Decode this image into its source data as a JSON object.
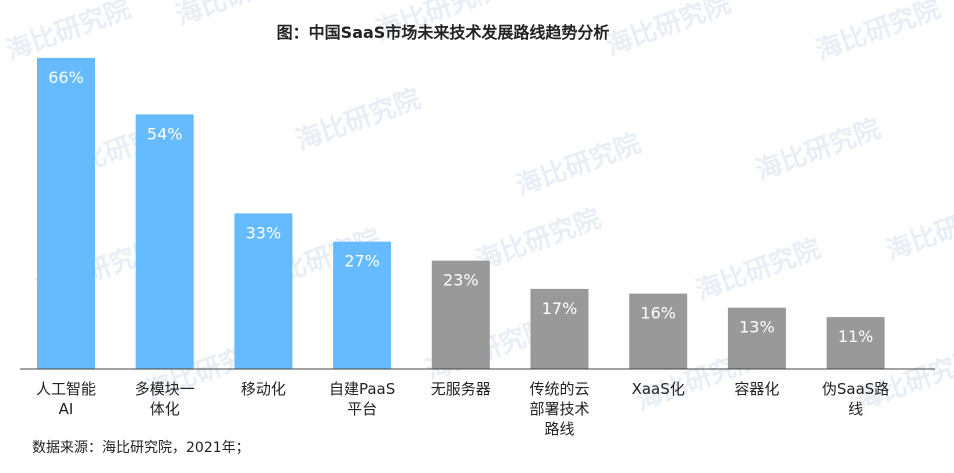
{
  "chart_data": {
    "type": "bar",
    "title": "图：中国SaaS市场未来技术发展路线趋势分析",
    "categories": [
      [
        "人工智能",
        "AI"
      ],
      [
        "多模块一",
        "体化"
      ],
      [
        "移动化"
      ],
      [
        "自建PaaS",
        "平台"
      ],
      [
        "无服务器"
      ],
      [
        "传统的云",
        "部署技术",
        "路线"
      ],
      [
        "XaaS化"
      ],
      [
        "容器化"
      ],
      [
        "伪SaaS路",
        "线"
      ]
    ],
    "values": [
      66,
      54,
      33,
      27,
      23,
      17,
      16,
      13,
      11
    ],
    "value_labels": [
      "66%",
      "54%",
      "33%",
      "27%",
      "23%",
      "17%",
      "16%",
      "13%",
      "11%"
    ],
    "unit": "%",
    "ylim": [
      0,
      70
    ],
    "grid": false,
    "legend": "none",
    "bar_colors": [
      "#66bbff",
      "#66bbff",
      "#66bbff",
      "#66bbff",
      "#999999",
      "#999999",
      "#999999",
      "#999999",
      "#999999"
    ],
    "axis_color": "#444444"
  },
  "source": "数据来源：海比研究院，2021年；",
  "watermark": "海比研究院"
}
